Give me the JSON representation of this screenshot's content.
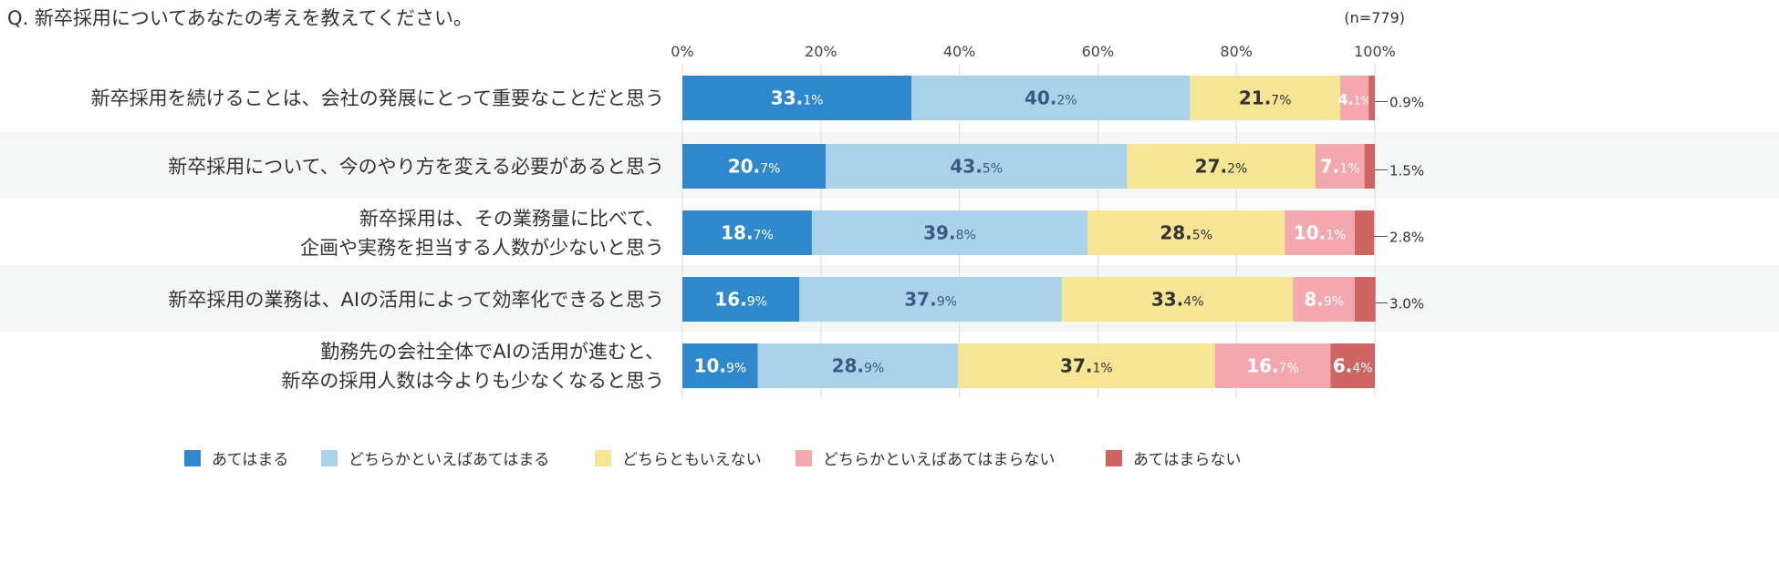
{
  "title": "Q. 新卒採用についてあなたの考えを教えてください。",
  "sample_size": "(n=779)",
  "chart_data": {
    "type": "bar",
    "orientation": "horizontal",
    "stacked": true,
    "xlim": [
      0,
      100
    ],
    "x_ticks": [
      "0%",
      "20%",
      "40%",
      "60%",
      "80%",
      "100%"
    ],
    "grid": true,
    "legend_position": "bottom",
    "categories": [
      [
        "新卒採用を続けることは、会社の発展にとって重要なことだと思う"
      ],
      [
        "新卒採用について、今のやり方を変える必要があると思う"
      ],
      [
        "新卒採用は、その業務量に比べて、",
        "企画や実務を担当する人数が少ないと思う"
      ],
      [
        "新卒採用の業務は、AIの活用によって効率化できると思う"
      ],
      [
        "勤務先の会社全体でAIの活用が進むと、",
        "新卒の採用人数は今よりも少なくなると思う"
      ]
    ],
    "series": [
      {
        "name": "あてはまる",
        "color": "#2f88cc",
        "label_color": "#ffffff",
        "values": [
          33.1,
          20.7,
          18.7,
          16.9,
          10.9
        ]
      },
      {
        "name": "どちらかといえばあてはまる",
        "color": "#aad3ea",
        "label_color": "#3a5a85",
        "values": [
          40.2,
          43.5,
          39.8,
          37.9,
          28.9
        ]
      },
      {
        "name": "どちらともいえない",
        "color": "#f5e594",
        "label_color": "#333333",
        "values": [
          21.7,
          27.2,
          28.5,
          33.4,
          37.1
        ]
      },
      {
        "name": "どちらかといえばあてはまらない",
        "color": "#f2a8ae",
        "label_color": "#ffffff",
        "values": [
          4.1,
          7.1,
          10.1,
          8.9,
          16.7
        ]
      },
      {
        "name": "あてはまらない",
        "color": "#cf6563",
        "label_color": "#ffffff",
        "values": [
          0.9,
          1.5,
          2.8,
          3.0,
          6.4
        ]
      }
    ]
  }
}
